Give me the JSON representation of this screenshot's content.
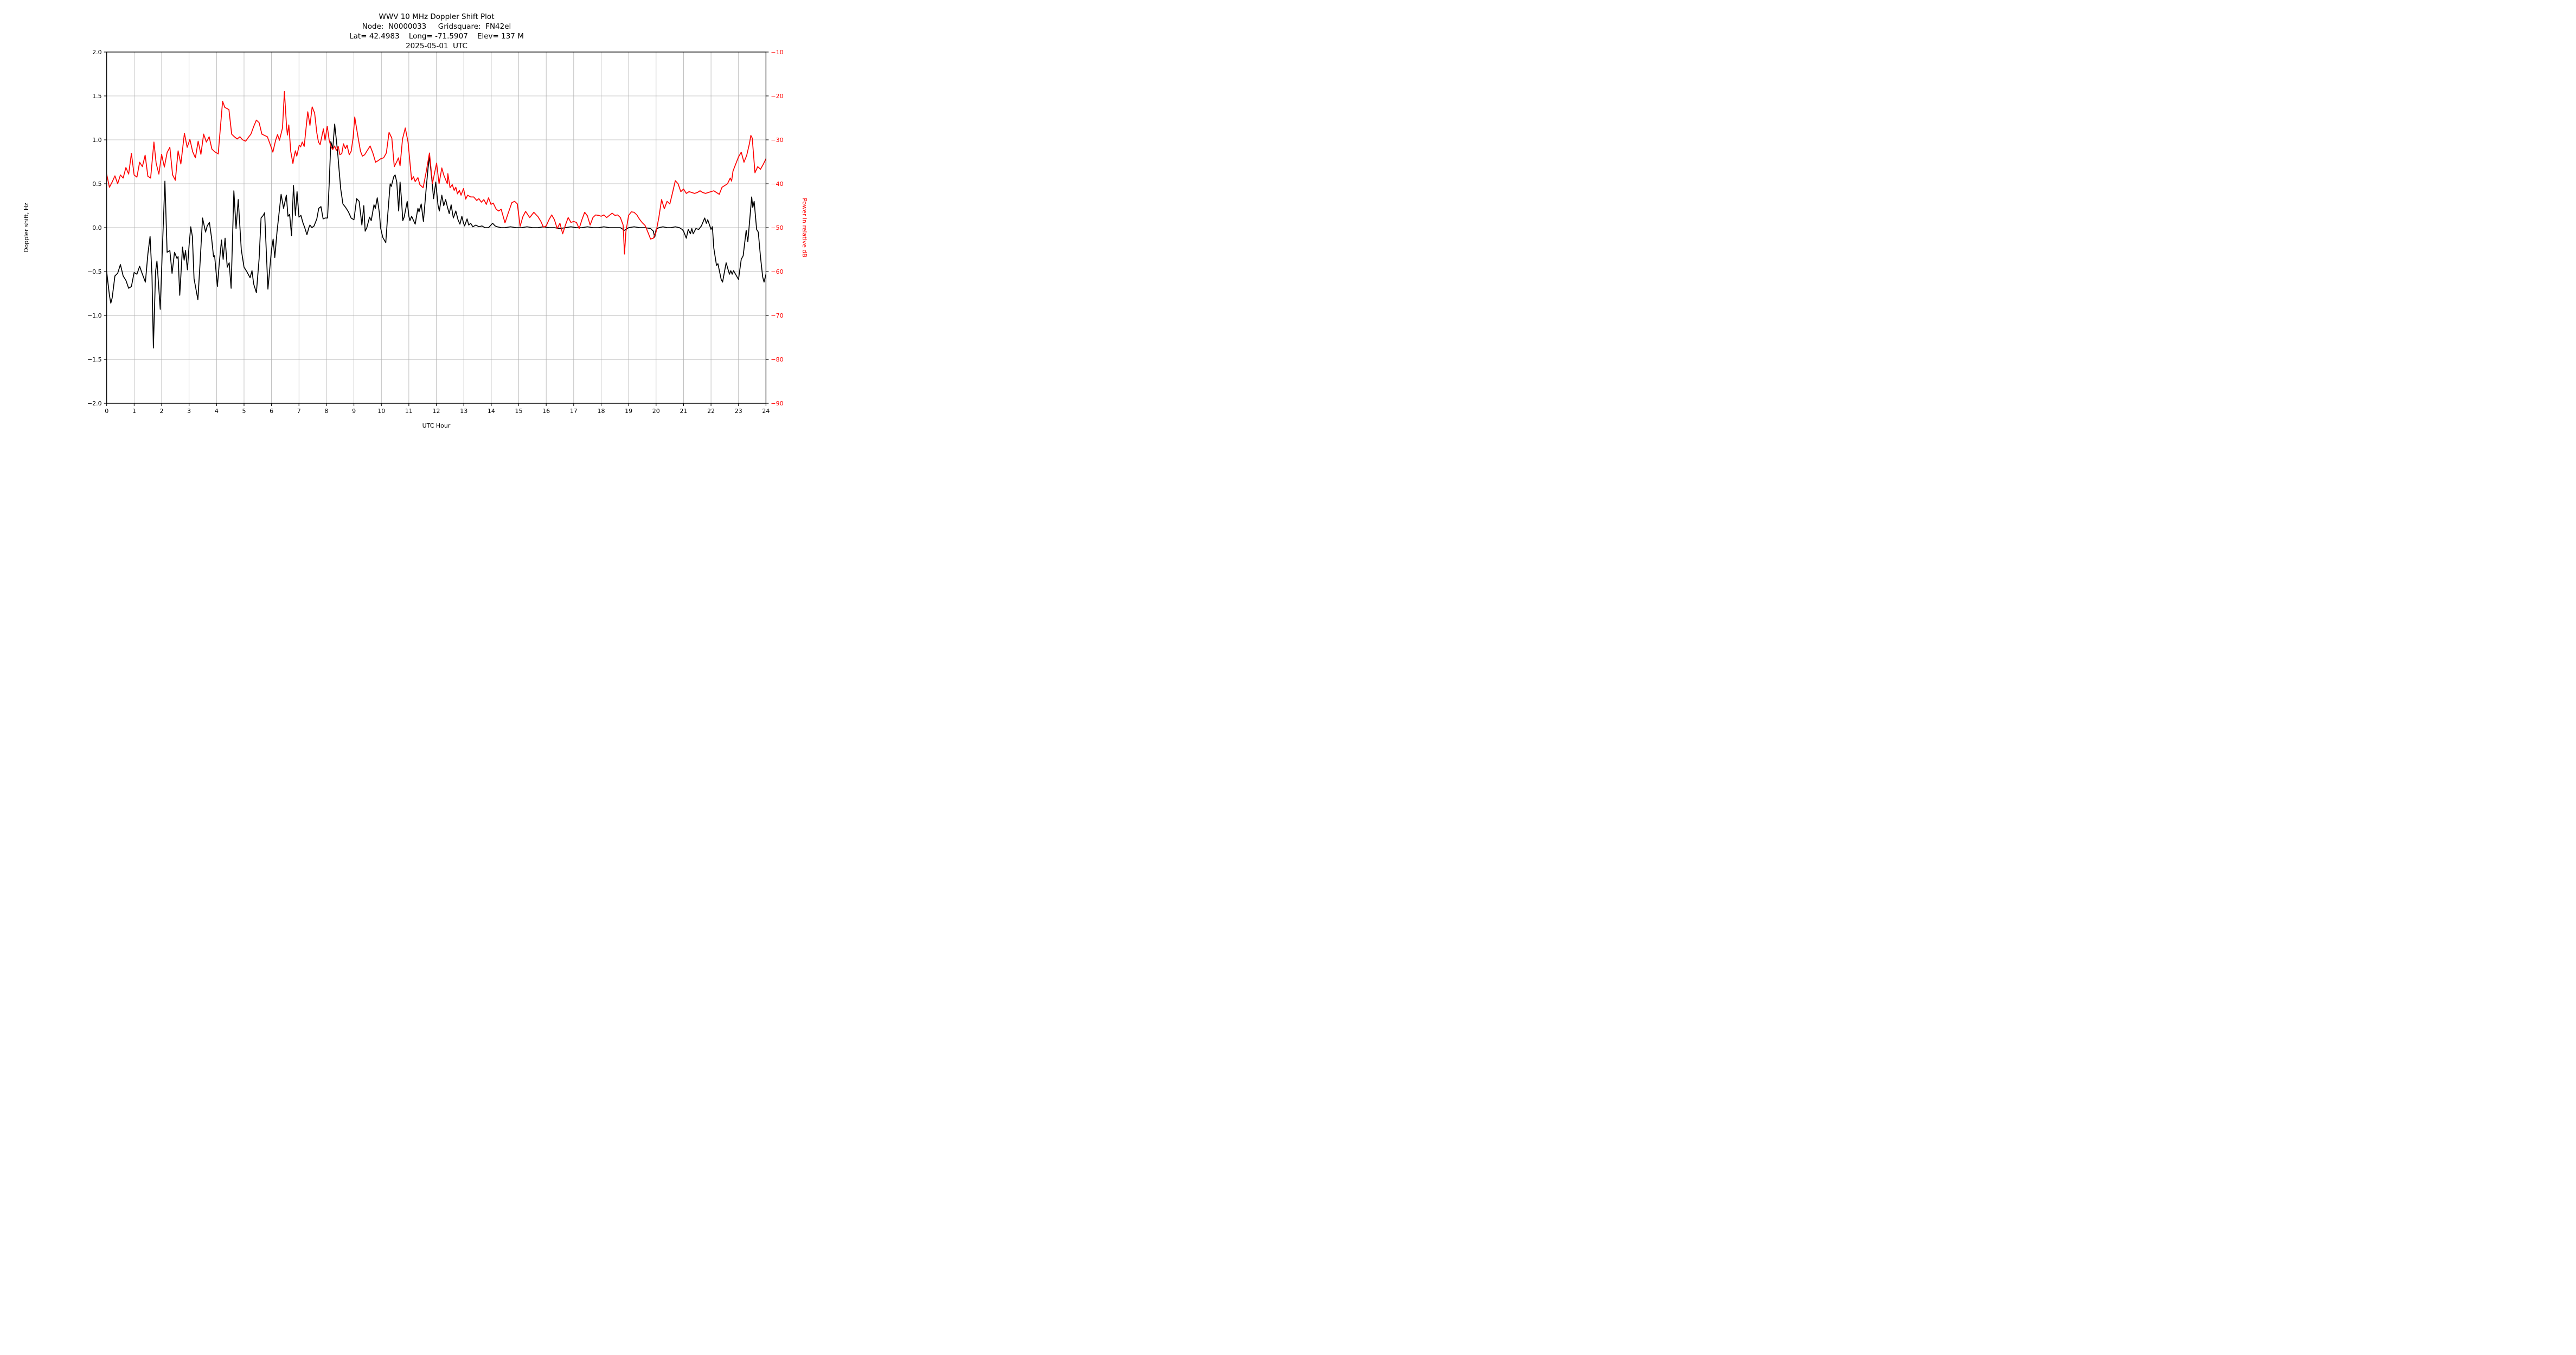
{
  "title": {
    "line1": "WWV 10 MHz Doppler Shift Plot",
    "line2": "Node:  N0000033     Gridsquare:  FN42el",
    "line3": "Lat= 42.4983    Long= -71.5907    Elev= 137 M",
    "line4": "2025-05-01  UTC"
  },
  "axes": {
    "left": {
      "label": "Doppler shift, Hz",
      "tick_labels": [
        "2.0",
        "1.5",
        "1.0",
        "0.5",
        "0.0",
        "−0.5",
        "−1.0",
        "−1.5",
        "−2.0"
      ],
      "tick_values": [
        2,
        1.5,
        1,
        0.5,
        0,
        -0.5,
        -1,
        -1.5,
        -2
      ],
      "range": [
        -2,
        2
      ],
      "color": "#000000"
    },
    "right": {
      "label": "Power in relative dB",
      "tick_labels": [
        "−10",
        "−20",
        "−30",
        "−40",
        "−50",
        "−60",
        "−70",
        "−80",
        "−90"
      ],
      "tick_values": [
        -10,
        -20,
        -30,
        -40,
        -50,
        -60,
        -70,
        -80,
        -90
      ],
      "range": [
        -90,
        -10
      ],
      "color": "#ff0000"
    },
    "bottom": {
      "label": "UTC Hour",
      "tick_labels": [
        "0",
        "1",
        "2",
        "3",
        "4",
        "5",
        "6",
        "7",
        "8",
        "9",
        "10",
        "11",
        "12",
        "13",
        "14",
        "15",
        "16",
        "17",
        "18",
        "19",
        "20",
        "21",
        "22",
        "23",
        "24"
      ],
      "tick_values": [
        0,
        1,
        2,
        3,
        4,
        5,
        6,
        7,
        8,
        9,
        10,
        11,
        12,
        13,
        14,
        15,
        16,
        17,
        18,
        19,
        20,
        21,
        22,
        23,
        24
      ],
      "range": [
        0,
        24
      ],
      "color": "#000000"
    }
  },
  "colors": {
    "background": "#ffffff",
    "grid": "#b0b0b0",
    "spine": "#000000",
    "doppler_line": "#000000",
    "power_line": "#ff0000"
  },
  "chart_data": {
    "type": "line",
    "title": "WWV 10 MHz Doppler Shift Plot",
    "xlabel": "UTC Hour",
    "ylabel_left": "Doppler shift, Hz",
    "ylabel_right": "Power in relative dB",
    "xlim": [
      0,
      24
    ],
    "ylim_left": [
      -2,
      2
    ],
    "ylim_right": [
      -90,
      -10
    ],
    "grid": true,
    "legend": "none",
    "series": [
      {
        "name": "doppler_shift_hz",
        "axis": "left",
        "color": "#000000",
        "x": [
          0,
          0.1,
          0.15,
          0.2,
          0.3,
          0.4,
          0.5,
          0.6,
          0.7,
          0.8,
          0.9,
          1.0,
          1.1,
          1.2,
          1.3,
          1.41,
          1.5,
          1.58,
          1.65,
          1.7,
          1.78,
          1.83,
          1.9,
          1.95,
          2.02,
          2.12,
          2.2,
          2.3,
          2.38,
          2.47,
          2.56,
          2.6,
          2.66,
          2.76,
          2.82,
          2.87,
          2.94,
          3.0,
          3.06,
          3.12,
          3.18,
          3.32,
          3.4,
          3.49,
          3.6,
          3.66,
          3.74,
          3.82,
          3.89,
          3.93,
          4.03,
          4.1,
          4.18,
          4.24,
          4.31,
          4.39,
          4.46,
          4.53,
          4.63,
          4.71,
          4.79,
          4.9,
          5.0,
          5.1,
          5.22,
          5.29,
          5.35,
          5.45,
          5.55,
          5.62,
          5.7,
          5.75,
          5.87,
          6.0,
          6.06,
          6.12,
          6.2,
          6.35,
          6.44,
          6.54,
          6.6,
          6.66,
          6.73,
          6.8,
          6.87,
          6.93,
          7.0,
          7.07,
          7.15,
          7.2,
          7.29,
          7.36,
          7.4,
          7.47,
          7.55,
          7.65,
          7.72,
          7.8,
          7.88,
          7.95,
          8.04,
          8.1,
          8.16,
          8.23,
          8.3,
          8.41,
          8.46,
          8.52,
          8.6,
          8.7,
          8.8,
          8.9,
          9.0,
          9.1,
          9.19,
          9.29,
          9.36,
          9.41,
          9.47,
          9.57,
          9.63,
          9.73,
          9.78,
          9.85,
          9.93,
          9.97,
          10.05,
          10.16,
          10.22,
          10.32,
          10.36,
          10.45,
          10.5,
          10.56,
          10.63,
          10.68,
          10.73,
          10.78,
          10.83,
          10.94,
          11.0,
          11.04,
          11.1,
          11.23,
          11.33,
          11.37,
          11.45,
          11.53,
          11.64,
          11.7,
          11.75,
          11.84,
          11.9,
          11.98,
          12.06,
          12.11,
          12.2,
          12.27,
          12.34,
          12.4,
          12.47,
          12.54,
          12.62,
          12.71,
          12.79,
          12.86,
          12.93,
          12.99,
          13.03,
          13.12,
          13.18,
          13.25,
          13.33,
          13.44,
          13.55,
          13.66,
          13.77,
          13.9,
          14.05,
          14.14,
          14.22,
          14.36,
          14.5,
          14.7,
          14.9,
          15.1,
          15.3,
          15.5,
          15.7,
          15.9,
          16.1,
          16.3,
          16.5,
          16.7,
          16.9,
          17.1,
          17.3,
          17.5,
          17.7,
          17.9,
          18.1,
          18.3,
          18.5,
          18.7,
          18.85,
          19.0,
          19.2,
          19.4,
          19.6,
          19.8,
          19.9,
          19.95,
          20.0,
          20.1,
          20.25,
          20.4,
          20.55,
          20.7,
          20.85,
          20.95,
          21.0,
          21.1,
          21.17,
          21.25,
          21.3,
          21.35,
          21.45,
          21.55,
          21.65,
          21.77,
          21.83,
          21.88,
          22.0,
          22.05,
          22.1,
          22.2,
          22.25,
          22.37,
          22.42,
          22.55,
          22.67,
          22.72,
          22.77,
          22.82,
          23.0,
          23.1,
          23.17,
          23.28,
          23.34,
          23.48,
          23.52,
          23.57,
          23.66,
          23.72,
          23.8,
          23.88,
          23.93,
          24.0
        ],
        "y": [
          -0.5,
          -0.77,
          -0.86,
          -0.8,
          -0.55,
          -0.52,
          -0.42,
          -0.55,
          -0.6,
          -0.69,
          -0.67,
          -0.51,
          -0.53,
          -0.44,
          -0.53,
          -0.62,
          -0.3,
          -0.1,
          -0.55,
          -1.37,
          -0.5,
          -0.38,
          -0.7,
          -0.93,
          -0.3,
          0.53,
          -0.28,
          -0.26,
          -0.52,
          -0.28,
          -0.35,
          -0.33,
          -0.77,
          -0.22,
          -0.37,
          -0.26,
          -0.48,
          -0.2,
          0.01,
          -0.1,
          -0.58,
          -0.82,
          -0.4,
          0.11,
          -0.05,
          0.02,
          0.06,
          -0.12,
          -0.33,
          -0.32,
          -0.67,
          -0.4,
          -0.14,
          -0.36,
          -0.12,
          -0.45,
          -0.4,
          -0.69,
          0.42,
          -0.01,
          0.32,
          -0.25,
          -0.45,
          -0.5,
          -0.57,
          -0.49,
          -0.64,
          -0.74,
          -0.35,
          0.11,
          0.14,
          0.17,
          -0.7,
          -0.25,
          -0.13,
          -0.34,
          -0.05,
          0.38,
          0.22,
          0.37,
          0.13,
          0.15,
          -0.09,
          0.48,
          0.14,
          0.41,
          0.12,
          0.14,
          0.05,
          0.01,
          -0.08,
          0.0,
          0.03,
          0.0,
          0.02,
          0.1,
          0.22,
          0.24,
          0.1,
          0.11,
          0.11,
          0.5,
          0.98,
          0.9,
          1.18,
          0.85,
          0.66,
          0.44,
          0.27,
          0.23,
          0.18,
          0.11,
          0.09,
          0.33,
          0.3,
          0.03,
          0.25,
          -0.04,
          0.0,
          0.12,
          0.08,
          0.26,
          0.22,
          0.34,
          0.16,
          0.0,
          -0.11,
          -0.17,
          0.1,
          0.5,
          0.47,
          0.58,
          0.6,
          0.52,
          0.19,
          0.52,
          0.33,
          0.08,
          0.12,
          0.3,
          0.13,
          0.08,
          0.13,
          0.04,
          0.22,
          0.18,
          0.27,
          0.07,
          0.48,
          0.68,
          0.81,
          0.54,
          0.33,
          0.52,
          0.26,
          0.19,
          0.37,
          0.25,
          0.32,
          0.24,
          0.16,
          0.26,
          0.11,
          0.19,
          0.09,
          0.04,
          0.13,
          0.05,
          0.02,
          0.1,
          0.03,
          0.05,
          0.01,
          0.03,
          0.01,
          0.02,
          0.0,
          0.0,
          0.05,
          0.02,
          0.01,
          0.0,
          0.0,
          0.01,
          0.0,
          0.0,
          0.01,
          0.0,
          0.0,
          0.01,
          0.0,
          0.0,
          -0.01,
          0.0,
          0.01,
          0.0,
          0.0,
          0.01,
          0.0,
          0.0,
          0.01,
          0.0,
          0.0,
          0.0,
          -0.03,
          0.0,
          0.01,
          0.0,
          0.0,
          -0.01,
          -0.04,
          -0.11,
          -0.02,
          0.0,
          0.01,
          0.0,
          0.0,
          0.01,
          0.0,
          -0.02,
          -0.04,
          -0.12,
          -0.02,
          -0.07,
          -0.01,
          -0.07,
          -0.01,
          -0.02,
          0.02,
          0.11,
          0.05,
          0.09,
          -0.02,
          0.01,
          -0.23,
          -0.43,
          -0.41,
          -0.59,
          -0.62,
          -0.4,
          -0.53,
          -0.49,
          -0.53,
          -0.49,
          -0.59,
          -0.36,
          -0.32,
          -0.03,
          -0.16,
          0.35,
          0.23,
          0.3,
          -0.02,
          -0.05,
          -0.33,
          -0.56,
          -0.62,
          -0.53
        ]
      },
      {
        "name": "power_relative_db",
        "axis": "right",
        "color": "#ff0000",
        "x": [
          0,
          0.1,
          0.2,
          0.3,
          0.4,
          0.5,
          0.6,
          0.7,
          0.8,
          0.9,
          1.0,
          1.1,
          1.2,
          1.3,
          1.4,
          1.5,
          1.6,
          1.72,
          1.8,
          1.9,
          2.0,
          2.1,
          2.2,
          2.3,
          2.4,
          2.5,
          2.6,
          2.7,
          2.83,
          2.93,
          3.03,
          3.13,
          3.23,
          3.33,
          3.43,
          3.53,
          3.63,
          3.73,
          3.83,
          3.93,
          4.06,
          4.22,
          4.3,
          4.45,
          4.55,
          4.65,
          4.75,
          4.85,
          4.95,
          5.06,
          5.15,
          5.25,
          5.35,
          5.45,
          5.55,
          5.65,
          5.75,
          5.85,
          5.95,
          6.05,
          6.15,
          6.22,
          6.29,
          6.4,
          6.47,
          6.55,
          6.58,
          6.63,
          6.7,
          6.78,
          6.82,
          6.87,
          6.92,
          7.01,
          7.06,
          7.12,
          7.19,
          7.27,
          7.32,
          7.4,
          7.48,
          7.57,
          7.65,
          7.71,
          7.77,
          7.83,
          7.89,
          7.95,
          8.03,
          8.1,
          8.17,
          8.23,
          8.3,
          8.36,
          8.43,
          8.49,
          8.56,
          8.62,
          8.69,
          8.75,
          8.83,
          8.9,
          8.97,
          9.03,
          9.1,
          9.17,
          9.24,
          9.31,
          9.39,
          9.49,
          9.59,
          9.69,
          9.79,
          9.89,
          9.98,
          10.08,
          10.18,
          10.28,
          10.38,
          10.47,
          10.58,
          10.62,
          10.68,
          10.77,
          10.87,
          10.97,
          11.1,
          11.17,
          11.23,
          11.33,
          11.4,
          11.52,
          11.64,
          11.75,
          11.86,
          12.01,
          12.1,
          12.2,
          12.27,
          12.4,
          12.42,
          12.5,
          12.58,
          12.65,
          12.71,
          12.77,
          12.84,
          12.9,
          12.99,
          13.07,
          13.14,
          13.25,
          13.36,
          13.47,
          13.55,
          13.64,
          13.73,
          13.82,
          13.9,
          13.99,
          14.07,
          14.18,
          14.27,
          14.36,
          14.5,
          14.6,
          14.75,
          14.85,
          14.95,
          15.05,
          15.15,
          15.25,
          15.4,
          15.55,
          15.7,
          15.8,
          15.9,
          16.0,
          16.1,
          16.2,
          16.3,
          16.4,
          16.5,
          16.6,
          16.7,
          16.8,
          16.9,
          17.0,
          17.1,
          17.2,
          17.3,
          17.4,
          17.5,
          17.6,
          17.7,
          17.8,
          17.9,
          18.0,
          18.1,
          18.2,
          18.3,
          18.4,
          18.5,
          18.6,
          18.7,
          18.8,
          18.85,
          18.9,
          19.0,
          19.1,
          19.2,
          19.3,
          19.4,
          19.5,
          19.6,
          19.7,
          19.8,
          19.9,
          20.0,
          20.1,
          20.2,
          20.3,
          20.4,
          20.5,
          20.6,
          20.7,
          20.8,
          20.9,
          21.0,
          21.1,
          21.2,
          21.3,
          21.4,
          21.5,
          21.6,
          21.7,
          21.8,
          21.9,
          22.0,
          22.1,
          22.2,
          22.3,
          22.4,
          22.5,
          22.6,
          22.7,
          22.75,
          22.8,
          22.9,
          23.0,
          23.1,
          23.2,
          23.3,
          23.4,
          23.45,
          23.5,
          23.6,
          23.7,
          23.8,
          23.9,
          24.0
        ],
        "y": [
          -37.8,
          -40.8,
          -39.6,
          -38.2,
          -40,
          -38,
          -38.7,
          -36.3,
          -37.8,
          -33.1,
          -38,
          -38.5,
          -35.1,
          -36.1,
          -33.5,
          -38.3,
          -38.7,
          -30.5,
          -35.3,
          -37.8,
          -33.3,
          -36.2,
          -32.9,
          -31.7,
          -38,
          -39.2,
          -32.5,
          -35.5,
          -28.5,
          -31.7,
          -29.9,
          -32.7,
          -34.1,
          -30.3,
          -33.3,
          -28.7,
          -30.5,
          -29.3,
          -32.1,
          -32.7,
          -33.2,
          -21.2,
          -22.6,
          -23.1,
          -28.7,
          -29.3,
          -29.8,
          -29.3,
          -30,
          -30.3,
          -29.5,
          -28.7,
          -27,
          -25.5,
          -26.1,
          -28.7,
          -29,
          -29.3,
          -31,
          -32.8,
          -30.1,
          -28.8,
          -30.1,
          -27.3,
          -19,
          -27.1,
          -28.9,
          -26.6,
          -32.6,
          -35.4,
          -33.9,
          -32.5,
          -33.7,
          -31.2,
          -31.6,
          -30.5,
          -31.5,
          -26.6,
          -23.6,
          -26.7,
          -22.5,
          -23.9,
          -28.4,
          -30.5,
          -31.1,
          -29.3,
          -27.5,
          -30.1,
          -26.9,
          -30.1,
          -31.6,
          -32.2,
          -31.4,
          -32.4,
          -31.5,
          -33.4,
          -33.1,
          -30.9,
          -32,
          -31.2,
          -33.4,
          -32.6,
          -29.6,
          -24.8,
          -27.5,
          -30.1,
          -32.6,
          -33.7,
          -33.4,
          -32.4,
          -31.4,
          -33,
          -35.1,
          -34.7,
          -34.3,
          -34.1,
          -33,
          -28.3,
          -29.6,
          -36.1,
          -34.7,
          -34.1,
          -35.9,
          -29.8,
          -27.3,
          -30.5,
          -39.1,
          -38.4,
          -39.5,
          -38.6,
          -40.2,
          -40.9,
          -37,
          -33,
          -39.9,
          -35.3,
          -40,
          -36.4,
          -38,
          -40,
          -37.7,
          -40.9,
          -40.2,
          -41.5,
          -40.8,
          -42.3,
          -41.5,
          -42.6,
          -41.1,
          -43.5,
          -42.6,
          -43,
          -43,
          -43.8,
          -43.4,
          -44.2,
          -43.6,
          -44.7,
          -43.2,
          -44.7,
          -44.4,
          -45.8,
          -46.2,
          -45.8,
          -48.9,
          -47,
          -44.3,
          -44,
          -44.6,
          -49.7,
          -47.5,
          -46.3,
          -47.7,
          -46.5,
          -47.5,
          -48.5,
          -49.9,
          -49.6,
          -48.2,
          -47.1,
          -48.2,
          -50.2,
          -49,
          -51.4,
          -49.4,
          -47.7,
          -48.8,
          -48.6,
          -48.8,
          -50.2,
          -48.2,
          -46.5,
          -47.3,
          -49.4,
          -47.7,
          -47.1,
          -47.2,
          -47.4,
          -47.1,
          -47.7,
          -47.2,
          -46.7,
          -47.2,
          -47.1,
          -47.7,
          -49.4,
          -56,
          -51,
          -47.2,
          -46.4,
          -46.5,
          -47.1,
          -48.1,
          -48.9,
          -49.5,
          -51,
          -52.6,
          -52.4,
          -51,
          -47.7,
          -43.6,
          -45.7,
          -44,
          -44.6,
          -42,
          -39.3,
          -40,
          -41.8,
          -41.2,
          -42.2,
          -41.8,
          -42,
          -42.2,
          -42,
          -41.6,
          -42,
          -42.2,
          -42,
          -41.8,
          -41.6,
          -42,
          -42.4,
          -40.8,
          -40.4,
          -40,
          -38.7,
          -39.4,
          -37.1,
          -35.5,
          -33.9,
          -32.8,
          -35.1,
          -33.5,
          -30.8,
          -29,
          -29.6,
          -37.5,
          -36.1,
          -36.7,
          -35.6,
          -34.3
        ]
      }
    ]
  }
}
